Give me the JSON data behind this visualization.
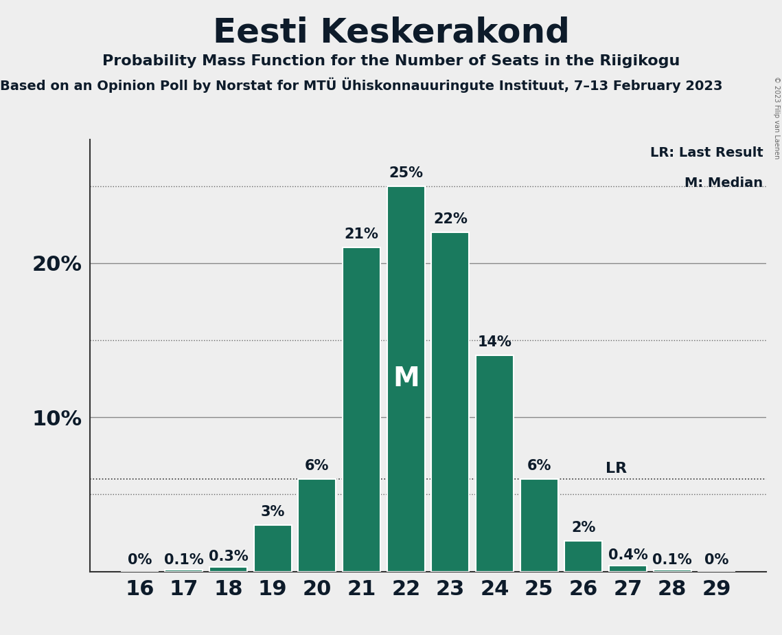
{
  "title": "Eesti Keskerakond",
  "subtitle": "Probability Mass Function for the Number of Seats in the Riigikogu",
  "sub_subtitle": "Based on an Opinion Poll by Norstat for MTÜ Ühiskonnauuringute Instituut, 7–13 February 2023",
  "copyright": "© 2023 Filip van Laenen",
  "categories": [
    16,
    17,
    18,
    19,
    20,
    21,
    22,
    23,
    24,
    25,
    26,
    27,
    28,
    29
  ],
  "values": [
    0.0,
    0.1,
    0.3,
    3.0,
    6.0,
    21.0,
    25.0,
    22.0,
    14.0,
    6.0,
    2.0,
    0.4,
    0.1,
    0.0
  ],
  "bar_labels": [
    "0%",
    "0.1%",
    "0.3%",
    "3%",
    "6%",
    "21%",
    "25%",
    "22%",
    "14%",
    "6%",
    "2%",
    "0.4%",
    "0.1%",
    "0%"
  ],
  "bar_color": "#1a7a5e",
  "bar_edge_color": "#ffffff",
  "background_color": "#eeeeee",
  "text_color": "#0d1b2a",
  "ylim": [
    0,
    28
  ],
  "yticks": [
    10,
    20
  ],
  "dotted_lines": [
    5,
    15,
    25
  ],
  "lr_value": 6.0,
  "median_seat_index": 6,
  "legend_lr": "LR: Last Result",
  "legend_m": "M: Median",
  "title_fontsize": 36,
  "subtitle_fontsize": 16,
  "sub_subtitle_fontsize": 14,
  "axis_tick_fontsize": 22,
  "bar_label_fontsize": 15,
  "median_label_fontsize": 28,
  "lr_label_fontsize": 16,
  "legend_fontsize": 14
}
